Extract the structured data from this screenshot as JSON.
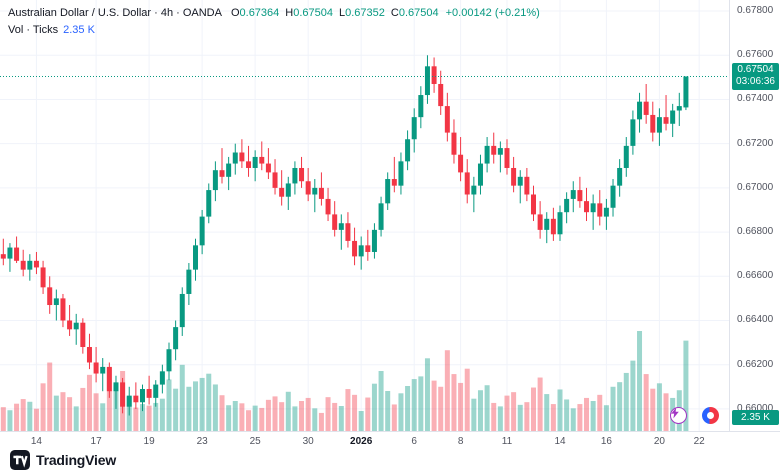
{
  "colors": {
    "up": "#089981",
    "down": "#f23645",
    "vol_up": "rgba(8,153,129,0.40)",
    "vol_down": "rgba(242,54,69,0.40)",
    "blue": "#2962ff",
    "grid": "#f0f3fa",
    "axis_text": "#50535e",
    "text": "#131722"
  },
  "header": {
    "symbol_title": "Australian Dollar / U.S. Dollar · 4h · OANDA",
    "open_label": "O",
    "open": "0.67364",
    "high_label": "H",
    "high": "0.67504",
    "low_label": "L",
    "low": "0.67352",
    "close_label": "C",
    "close": "0.67504",
    "change": "+0.00142 (+0.21%)",
    "vol_label": "Vol · Ticks",
    "vol_value": "2.35 K"
  },
  "price_scale": {
    "ticks": [
      "0.67800",
      "0.67600",
      "0.67400",
      "0.67200",
      "0.67000",
      "0.66800",
      "0.66600",
      "0.66400",
      "0.66200",
      "0.66000"
    ],
    "current_price": "0.67504",
    "countdown": "03:06:36",
    "volume_label": "2.35 K"
  },
  "footer": {
    "brand": "TradingView"
  },
  "chart_data": {
    "type": "candlestick",
    "title": "Australian Dollar / U.S. Dollar",
    "symbol": "AUD/USD",
    "interval": "4h",
    "exchange": "OANDA",
    "legend_ohlc": {
      "open": 0.67364,
      "high": 0.67504,
      "low": 0.67352,
      "close": 0.67504,
      "change": 0.00142,
      "change_pct": 0.21
    },
    "current_price": 0.67504,
    "price_axis": {
      "min": 0.66,
      "max": 0.678,
      "step": 0.002,
      "render_max": 0.6785,
      "render_min": 0.659
    },
    "volume_axis": {
      "max": 2600,
      "current": 2350,
      "current_label": "2.35 K"
    },
    "right_margin_bars": 6,
    "x_axis_labels": [
      {
        "text": "14",
        "i": 5
      },
      {
        "text": "17",
        "i": 14
      },
      {
        "text": "19",
        "i": 22
      },
      {
        "text": "23",
        "i": 30
      },
      {
        "text": "25",
        "i": 38
      },
      {
        "text": "30",
        "i": 46
      },
      {
        "text": "2026",
        "i": 54,
        "bold": true
      },
      {
        "text": "6",
        "i": 62
      },
      {
        "text": "8",
        "i": 69
      },
      {
        "text": "11",
        "i": 76
      },
      {
        "text": "14",
        "i": 84
      },
      {
        "text": "16",
        "i": 91
      },
      {
        "text": "20",
        "i": 99
      },
      {
        "text": "22",
        "i": 105
      }
    ],
    "candles": [
      [
        0.667,
        0.6677,
        0.6665,
        0.6668,
        620
      ],
      [
        0.6668,
        0.6675,
        0.6662,
        0.6673,
        540
      ],
      [
        0.6673,
        0.6678,
        0.6666,
        0.6667,
        710
      ],
      [
        0.6667,
        0.6672,
        0.666,
        0.6663,
        830
      ],
      [
        0.6663,
        0.667,
        0.6658,
        0.6667,
        760
      ],
      [
        0.6667,
        0.6671,
        0.6661,
        0.6664,
        580
      ],
      [
        0.6664,
        0.6667,
        0.6652,
        0.6655,
        1240
      ],
      [
        0.6655,
        0.666,
        0.6643,
        0.6647,
        1780
      ],
      [
        0.6647,
        0.6654,
        0.664,
        0.665,
        920
      ],
      [
        0.665,
        0.6652,
        0.6637,
        0.664,
        1010
      ],
      [
        0.664,
        0.6647,
        0.6633,
        0.6636,
        880
      ],
      [
        0.6636,
        0.6643,
        0.6629,
        0.6639,
        640
      ],
      [
        0.6639,
        0.6641,
        0.6625,
        0.6628,
        1120
      ],
      [
        0.6628,
        0.6634,
        0.6618,
        0.6621,
        1460
      ],
      [
        0.6621,
        0.6628,
        0.6612,
        0.6616,
        980
      ],
      [
        0.6616,
        0.6623,
        0.6608,
        0.6619,
        720
      ],
      [
        0.6619,
        0.6621,
        0.6605,
        0.6608,
        1650
      ],
      [
        0.6608,
        0.6615,
        0.66,
        0.6612,
        1180
      ],
      [
        0.6612,
        0.6614,
        0.6598,
        0.6601,
        1560
      ],
      [
        0.6601,
        0.661,
        0.6597,
        0.6606,
        890
      ],
      [
        0.6606,
        0.6612,
        0.66,
        0.6603,
        610
      ],
      [
        0.6603,
        0.6611,
        0.6599,
        0.6609,
        700
      ],
      [
        0.6609,
        0.6615,
        0.6602,
        0.6605,
        660
      ],
      [
        0.6605,
        0.6613,
        0.6601,
        0.6611,
        730
      ],
      [
        0.6611,
        0.662,
        0.6607,
        0.6617,
        840
      ],
      [
        0.6617,
        0.663,
        0.6613,
        0.6627,
        1340
      ],
      [
        0.6627,
        0.664,
        0.6622,
        0.6637,
        1100
      ],
      [
        0.6637,
        0.6655,
        0.6633,
        0.6652,
        1720
      ],
      [
        0.6652,
        0.6666,
        0.6647,
        0.6663,
        1150
      ],
      [
        0.6663,
        0.6677,
        0.6658,
        0.6674,
        1290
      ],
      [
        0.6674,
        0.669,
        0.667,
        0.6687,
        1380
      ],
      [
        0.6687,
        0.6702,
        0.6684,
        0.6699,
        1490
      ],
      [
        0.6699,
        0.6712,
        0.6694,
        0.6708,
        1210
      ],
      [
        0.6708,
        0.6718,
        0.6702,
        0.6705,
        930
      ],
      [
        0.6705,
        0.6714,
        0.6699,
        0.6711,
        670
      ],
      [
        0.6711,
        0.672,
        0.6706,
        0.6716,
        780
      ],
      [
        0.6716,
        0.6722,
        0.6709,
        0.6712,
        720
      ],
      [
        0.6712,
        0.6719,
        0.6705,
        0.6709,
        540
      ],
      [
        0.6709,
        0.6717,
        0.6703,
        0.6714,
        660
      ],
      [
        0.6714,
        0.6721,
        0.6708,
        0.6711,
        600
      ],
      [
        0.6711,
        0.6718,
        0.6704,
        0.6707,
        810
      ],
      [
        0.6707,
        0.6713,
        0.6697,
        0.67,
        900
      ],
      [
        0.67,
        0.6708,
        0.6692,
        0.6696,
        750
      ],
      [
        0.6696,
        0.6705,
        0.669,
        0.6702,
        1020
      ],
      [
        0.6702,
        0.6712,
        0.6697,
        0.6709,
        640
      ],
      [
        0.6709,
        0.6714,
        0.67,
        0.6703,
        780
      ],
      [
        0.6703,
        0.6709,
        0.6694,
        0.6697,
        860
      ],
      [
        0.6697,
        0.6704,
        0.6689,
        0.67,
        590
      ],
      [
        0.67,
        0.6707,
        0.6692,
        0.6695,
        470
      ],
      [
        0.6695,
        0.67,
        0.6685,
        0.6688,
        880
      ],
      [
        0.6688,
        0.6694,
        0.6678,
        0.6681,
        730
      ],
      [
        0.6681,
        0.6688,
        0.6672,
        0.6684,
        650
      ],
      [
        0.6684,
        0.6689,
        0.6673,
        0.6676,
        1090
      ],
      [
        0.6676,
        0.6682,
        0.6665,
        0.6669,
        940
      ],
      [
        0.6669,
        0.6678,
        0.6663,
        0.6674,
        520
      ],
      [
        0.6674,
        0.6681,
        0.6667,
        0.6671,
        870
      ],
      [
        0.6671,
        0.6684,
        0.6668,
        0.6681,
        1230
      ],
      [
        0.6681,
        0.6696,
        0.6678,
        0.6693,
        1560
      ],
      [
        0.6693,
        0.6707,
        0.669,
        0.6704,
        1040
      ],
      [
        0.6704,
        0.6714,
        0.6698,
        0.6701,
        690
      ],
      [
        0.6701,
        0.6716,
        0.6697,
        0.6712,
        980
      ],
      [
        0.6712,
        0.6726,
        0.6708,
        0.6722,
        1170
      ],
      [
        0.6722,
        0.6736,
        0.6716,
        0.6732,
        1350
      ],
      [
        0.6732,
        0.6746,
        0.6727,
        0.6742,
        1420
      ],
      [
        0.6742,
        0.676,
        0.6738,
        0.6755,
        1890
      ],
      [
        0.6755,
        0.6759,
        0.6743,
        0.6747,
        1310
      ],
      [
        0.6747,
        0.6753,
        0.6733,
        0.6737,
        1150
      ],
      [
        0.6737,
        0.6743,
        0.6721,
        0.6725,
        2100
      ],
      [
        0.6725,
        0.6731,
        0.6711,
        0.6715,
        1480
      ],
      [
        0.6715,
        0.6723,
        0.6703,
        0.6707,
        1250
      ],
      [
        0.6707,
        0.6713,
        0.6693,
        0.6697,
        1620
      ],
      [
        0.6697,
        0.6705,
        0.6689,
        0.6701,
        840
      ],
      [
        0.6701,
        0.6715,
        0.6697,
        0.6711,
        1060
      ],
      [
        0.6711,
        0.6723,
        0.6707,
        0.6719,
        1190
      ],
      [
        0.6719,
        0.6725,
        0.6711,
        0.6715,
        730
      ],
      [
        0.6715,
        0.6721,
        0.6707,
        0.6718,
        640
      ],
      [
        0.6718,
        0.6722,
        0.6706,
        0.6709,
        920
      ],
      [
        0.6709,
        0.6714,
        0.6698,
        0.6701,
        1010
      ],
      [
        0.6701,
        0.6708,
        0.6693,
        0.6705,
        680
      ],
      [
        0.6705,
        0.6709,
        0.6694,
        0.6697,
        750
      ],
      [
        0.6697,
        0.6701,
        0.6685,
        0.6688,
        1130
      ],
      [
        0.6688,
        0.6694,
        0.6677,
        0.6681,
        1390
      ],
      [
        0.6681,
        0.6689,
        0.6675,
        0.6686,
        960
      ],
      [
        0.6686,
        0.6691,
        0.6676,
        0.6679,
        700
      ],
      [
        0.6679,
        0.6692,
        0.6676,
        0.6689,
        1080
      ],
      [
        0.6689,
        0.6698,
        0.6684,
        0.6695,
        820
      ],
      [
        0.6695,
        0.6703,
        0.6689,
        0.6699,
        590
      ],
      [
        0.6699,
        0.6705,
        0.6691,
        0.6694,
        700
      ],
      [
        0.6694,
        0.67,
        0.6685,
        0.6689,
        860
      ],
      [
        0.6689,
        0.6697,
        0.6681,
        0.6693,
        780
      ],
      [
        0.6693,
        0.6699,
        0.6683,
        0.6687,
        940
      ],
      [
        0.6687,
        0.6695,
        0.6681,
        0.6691,
        670
      ],
      [
        0.6691,
        0.6704,
        0.6687,
        0.6701,
        1150
      ],
      [
        0.6701,
        0.6713,
        0.6696,
        0.6709,
        1270
      ],
      [
        0.6709,
        0.6723,
        0.6705,
        0.6719,
        1510
      ],
      [
        0.6719,
        0.6735,
        0.6715,
        0.6731,
        1830
      ],
      [
        0.6731,
        0.6743,
        0.6725,
        0.6739,
        2600
      ],
      [
        0.6739,
        0.6747,
        0.6729,
        0.6733,
        1480
      ],
      [
        0.6733,
        0.6739,
        0.6721,
        0.6725,
        1100
      ],
      [
        0.6725,
        0.6736,
        0.6719,
        0.6732,
        1240
      ],
      [
        0.6732,
        0.6742,
        0.6726,
        0.6729,
        980
      ],
      [
        0.6729,
        0.6738,
        0.6723,
        0.6735,
        860
      ],
      [
        0.6735,
        0.6743,
        0.6728,
        0.6737,
        1060
      ],
      [
        0.67364,
        0.67504,
        0.67352,
        0.67504,
        2350
      ]
    ]
  }
}
